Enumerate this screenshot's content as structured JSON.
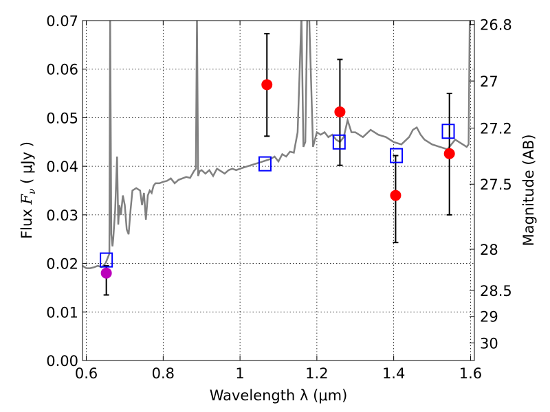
{
  "chart_data": {
    "type": "scatter",
    "xlabel": "Wavelength  λ (μm)",
    "ylabel_prefix": "Flux  ",
    "ylabel_symbol": "F",
    "ylabel_subscript": "ν",
    "ylabel_suffix": "  ( μJy )",
    "y2label": "Magnitude (AB)",
    "xlim": [
      0.59,
      1.61
    ],
    "ylim": [
      0.0,
      0.07
    ],
    "grid": true,
    "x_ticks": [
      {
        "v": 0.6,
        "label": "0.6"
      },
      {
        "v": 0.8,
        "label": "0.8"
      },
      {
        "v": 1.0,
        "label": "1"
      },
      {
        "v": 1.2,
        "label": "1.2"
      },
      {
        "v": 1.4,
        "label": "1.4"
      },
      {
        "v": 1.6,
        "label": "1.6"
      }
    ],
    "y_ticks": [
      {
        "v": 0.0,
        "label": "0.00"
      },
      {
        "v": 0.01,
        "label": "0.01"
      },
      {
        "v": 0.02,
        "label": "0.02"
      },
      {
        "v": 0.03,
        "label": "0.03"
      },
      {
        "v": 0.04,
        "label": "0.04"
      },
      {
        "v": 0.05,
        "label": "0.05"
      },
      {
        "v": 0.06,
        "label": "0.06"
      },
      {
        "v": 0.07,
        "label": "0.07"
      }
    ],
    "y2_ticks": [
      {
        "v": 26.8,
        "label": "26.8"
      },
      {
        "v": 27.0,
        "label": "27"
      },
      {
        "v": 27.2,
        "label": "27.2"
      },
      {
        "v": 27.5,
        "label": "27.5"
      },
      {
        "v": 28.0,
        "label": "28"
      },
      {
        "v": 28.5,
        "label": "28.5"
      },
      {
        "v": 29.0,
        "label": "29"
      },
      {
        "v": 30.0,
        "label": "30"
      }
    ],
    "series": [
      {
        "kind": "model_spectrum",
        "color": "#808080",
        "x": [
          0.59,
          0.6,
          0.61,
          0.62,
          0.63,
          0.64,
          0.65,
          0.655,
          0.66,
          0.662,
          0.665,
          0.668,
          0.67,
          0.675,
          0.68,
          0.683,
          0.686,
          0.69,
          0.695,
          0.7,
          0.705,
          0.71,
          0.715,
          0.72,
          0.73,
          0.74,
          0.745,
          0.75,
          0.755,
          0.76,
          0.765,
          0.77,
          0.775,
          0.78,
          0.79,
          0.8,
          0.81,
          0.82,
          0.83,
          0.84,
          0.85,
          0.86,
          0.87,
          0.88,
          0.885,
          0.888,
          0.891,
          0.895,
          0.9,
          0.91,
          0.92,
          0.93,
          0.94,
          0.95,
          0.96,
          0.97,
          0.98,
          0.99,
          1.0,
          1.02,
          1.04,
          1.06,
          1.08,
          1.09,
          1.1,
          1.11,
          1.12,
          1.13,
          1.14,
          1.15,
          1.16,
          1.165,
          1.17,
          1.175,
          1.18,
          1.19,
          1.2,
          1.21,
          1.22,
          1.23,
          1.24,
          1.25,
          1.26,
          1.27,
          1.28,
          1.29,
          1.3,
          1.32,
          1.34,
          1.36,
          1.38,
          1.4,
          1.42,
          1.44,
          1.45,
          1.46,
          1.47,
          1.48,
          1.5,
          1.52,
          1.54,
          1.55,
          1.56,
          1.57,
          1.58,
          1.59,
          1.595,
          1.598,
          1.6
        ],
        "y": [
          0.0195,
          0.019,
          0.019,
          0.0192,
          0.0195,
          0.0192,
          0.02,
          0.021,
          0.022,
          0.071,
          0.026,
          0.0235,
          0.025,
          0.031,
          0.042,
          0.028,
          0.032,
          0.03,
          0.034,
          0.032,
          0.027,
          0.026,
          0.031,
          0.035,
          0.0355,
          0.035,
          0.032,
          0.0345,
          0.029,
          0.034,
          0.035,
          0.0345,
          0.036,
          0.0365,
          0.0365,
          0.0368,
          0.037,
          0.0375,
          0.0365,
          0.0372,
          0.0375,
          0.0378,
          0.0376,
          0.039,
          0.0395,
          0.071,
          0.038,
          0.039,
          0.0392,
          0.0385,
          0.0392,
          0.038,
          0.0395,
          0.039,
          0.0385,
          0.0392,
          0.0395,
          0.0392,
          0.0395,
          0.04,
          0.0405,
          0.041,
          0.0415,
          0.042,
          0.041,
          0.0425,
          0.042,
          0.043,
          0.0428,
          0.047,
          0.071,
          0.044,
          0.045,
          0.071,
          0.071,
          0.044,
          0.047,
          0.0465,
          0.047,
          0.046,
          0.0465,
          0.0455,
          0.045,
          0.046,
          0.0495,
          0.047,
          0.047,
          0.046,
          0.0475,
          0.0465,
          0.046,
          0.045,
          0.0445,
          0.046,
          0.0475,
          0.048,
          0.0465,
          0.0455,
          0.0445,
          0.044,
          0.0435,
          0.0445,
          0.0455,
          0.045,
          0.0445,
          0.044,
          0.0445,
          0.071,
          0.071
        ]
      },
      {
        "kind": "model_photometry",
        "marker": "square",
        "color": "#0000ff",
        "points": [
          {
            "x": 0.652,
            "y": 0.0207
          },
          {
            "x": 1.065,
            "y": 0.0405
          },
          {
            "x": 1.258,
            "y": 0.045
          },
          {
            "x": 1.407,
            "y": 0.0422
          },
          {
            "x": 1.542,
            "y": 0.0472
          }
        ]
      },
      {
        "kind": "observed_photometry",
        "marker": "circle",
        "color": "#ff0000",
        "points": [
          {
            "x": 0.652,
            "y": 0.018,
            "lo": 0.0135,
            "hi": 0.0195,
            "color": "#bb00bb"
          },
          {
            "x": 1.07,
            "y": 0.0568,
            "lo": 0.0462,
            "hi": 0.0673
          },
          {
            "x": 1.26,
            "y": 0.0512,
            "lo": 0.0402,
            "hi": 0.062
          },
          {
            "x": 1.405,
            "y": 0.034,
            "lo": 0.0243,
            "hi": 0.0422
          },
          {
            "x": 1.545,
            "y": 0.0426,
            "lo": 0.03,
            "hi": 0.055
          }
        ]
      }
    ]
  }
}
